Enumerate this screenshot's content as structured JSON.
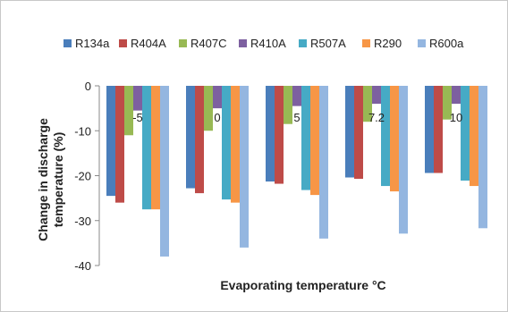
{
  "chart_data": {
    "type": "bar",
    "title": "",
    "xlabel": "Evaporating temperature °C",
    "ylabel": "Change in discharge temperature (%)",
    "ylabel_lines": [
      "Change in discharge",
      "temperature (%)"
    ],
    "ylim": [
      -40,
      0
    ],
    "yticks": [
      0,
      -10,
      -20,
      -30,
      -40
    ],
    "ytick_labels": [
      "0",
      "-10",
      "-20",
      "-30",
      "-40"
    ],
    "grid": false,
    "legend_position": "top",
    "categories": [
      "-5",
      "0",
      "5",
      "7.2",
      "10"
    ],
    "series": [
      {
        "name": "R134a",
        "color": "#4a7ebb",
        "values": [
          -24.5,
          -22.8,
          -21.3,
          -20.4,
          -19.4
        ]
      },
      {
        "name": "R404A",
        "color": "#be4b48",
        "values": [
          -26.0,
          -23.9,
          -21.8,
          -20.7,
          -19.4
        ]
      },
      {
        "name": "R407C",
        "color": "#98b954",
        "values": [
          -11.0,
          -10.0,
          -8.5,
          -8.0,
          -7.5
        ]
      },
      {
        "name": "R410A",
        "color": "#7d60a0",
        "values": [
          -5.5,
          -5.0,
          -4.5,
          -4.0,
          -4.0
        ]
      },
      {
        "name": "R507A",
        "color": "#46aac5",
        "values": [
          -27.5,
          -25.3,
          -23.2,
          -22.3,
          -21.1
        ]
      },
      {
        "name": "R290",
        "color": "#f79646",
        "values": [
          -27.5,
          -26.0,
          -24.3,
          -23.5,
          -22.3
        ]
      },
      {
        "name": "R600a",
        "color": "#94b6e0",
        "values": [
          -38.0,
          -36.0,
          -34.0,
          -32.9,
          -31.7
        ]
      }
    ]
  }
}
